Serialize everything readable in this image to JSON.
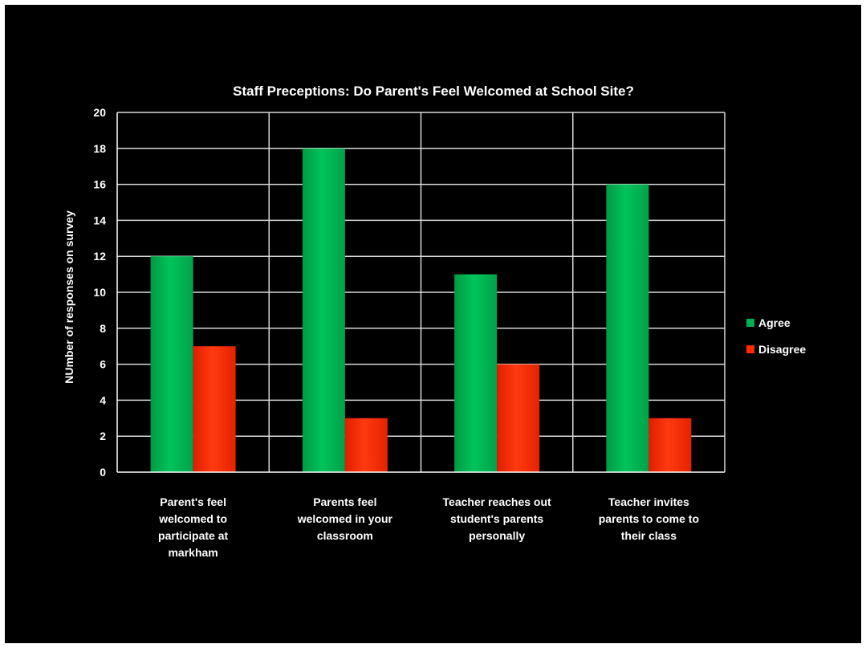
{
  "chart_data": {
    "type": "bar",
    "title": "Staff Preceptions: Do Parent's  Feel Welcomed at School Site?",
    "xlabel": "",
    "ylabel": "NUmber of responses on survey",
    "ylim": [
      0,
      20
    ],
    "yticks": [
      "0",
      "2",
      "4",
      "6",
      "8",
      "10",
      "12",
      "14",
      "16",
      "18",
      "20"
    ],
    "categories": [
      [
        "Parent's feel",
        "welcomed to",
        "participate at",
        "markham"
      ],
      [
        "Parents feel",
        "welcomed in your",
        "classroom"
      ],
      [
        "Teacher reaches out",
        "student's parents",
        "personally"
      ],
      [
        "Teacher invites",
        "parents to come to",
        "their class"
      ]
    ],
    "series": [
      {
        "name": "Agree",
        "values": [
          12,
          18,
          11,
          16
        ],
        "color": "#00b050"
      },
      {
        "name": "Disagree",
        "values": [
          7,
          3,
          6,
          3
        ],
        "color": "#ff2a00"
      }
    ],
    "grid": true,
    "legend": "right"
  }
}
